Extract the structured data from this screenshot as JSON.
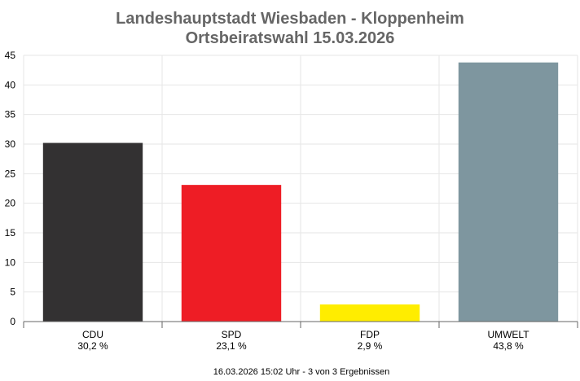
{
  "chart_data": {
    "type": "bar",
    "title": "Landeshauptstadt Wiesbaden - Kloppenheim",
    "subtitle": "Ortsbeiratswahl 15.03.2026",
    "categories": [
      "CDU",
      "SPD",
      "FDP",
      "UMWELT"
    ],
    "values": [
      30.2,
      23.1,
      2.9,
      43.8
    ],
    "value_labels": [
      "30,2 %",
      "23,1 %",
      "2,9 %",
      "43,8 %"
    ],
    "colors": [
      "#333132",
      "#ee1d25",
      "#ffed00",
      "#7e969f"
    ],
    "ylim": [
      0,
      45
    ],
    "yticks": [
      0,
      5,
      10,
      15,
      20,
      25,
      30,
      35,
      40,
      45
    ],
    "grid": true,
    "xlabel": "",
    "ylabel": ""
  },
  "footer": "16.03.2026 15:02 Uhr - 3 von 3 Ergebnissen"
}
